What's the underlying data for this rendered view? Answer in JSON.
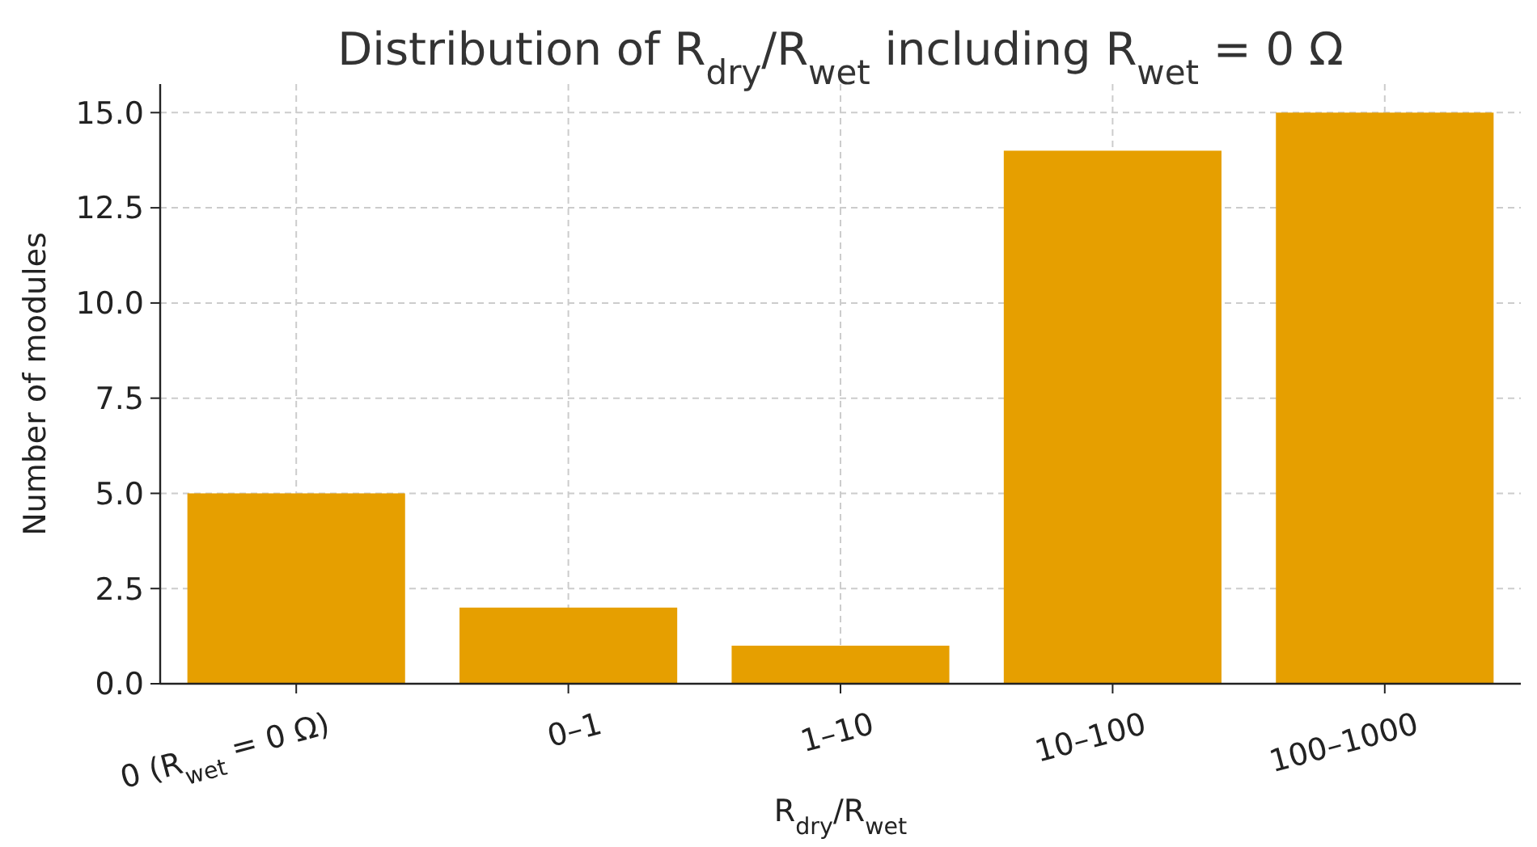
{
  "chart_data": {
    "type": "bar",
    "title": "Distribution of R$_{dry}$/R$_{wet}$ including R$_{wet}$ = 0 Ω",
    "xlabel": "R$_{dry}$/R$_{wet}$",
    "ylabel": "Number of modules",
    "categories": [
      "0 (R$_{wet}$ = 0 Ω)",
      "0–1",
      "1–10",
      "10–100",
      "100–1000"
    ],
    "values": [
      5,
      2,
      1,
      14,
      15
    ],
    "color": "#e69f00",
    "ylim": [
      0,
      15.75
    ],
    "yticks": [
      {
        "value": 0,
        "label": "0.0"
      },
      {
        "value": 2.5,
        "label": "2.5"
      },
      {
        "value": 5,
        "label": "5.0"
      },
      {
        "value": 7.5,
        "label": "7.5"
      },
      {
        "value": 10,
        "label": "10.0"
      },
      {
        "value": 12.5,
        "label": "12.5"
      },
      {
        "value": 15,
        "label": "15.0"
      }
    ],
    "grid": true
  }
}
